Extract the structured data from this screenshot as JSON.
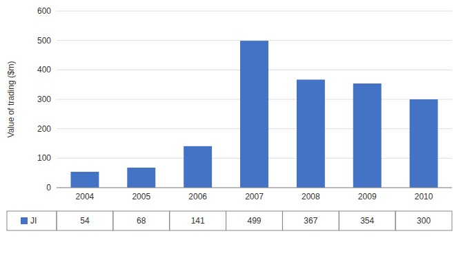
{
  "chart_data": {
    "type": "bar",
    "categories": [
      "2004",
      "2005",
      "2006",
      "2007",
      "2008",
      "2009",
      "2010"
    ],
    "series": [
      {
        "name": "JI",
        "color": "#4472C4",
        "values": [
          54,
          68,
          141,
          499,
          367,
          354,
          300
        ]
      }
    ],
    "ylabel": "Value of trading ($m)",
    "ylim": [
      0,
      600
    ],
    "yticks": [
      0,
      100,
      200,
      300,
      400,
      500,
      600
    ],
    "grid": true
  }
}
